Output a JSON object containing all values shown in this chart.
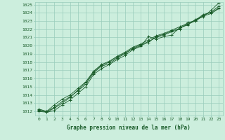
{
  "title": "Graphe pression niveau de la mer (hPa)",
  "ylabel_ticks": [
    1012,
    1013,
    1014,
    1015,
    1016,
    1017,
    1018,
    1019,
    1020,
    1021,
    1022,
    1023,
    1024,
    1025
  ],
  "ylim": [
    1011.5,
    1025.3
  ],
  "xlim": [
    -0.5,
    23.5
  ],
  "xticks": [
    0,
    1,
    2,
    3,
    4,
    5,
    6,
    7,
    8,
    9,
    10,
    11,
    12,
    13,
    14,
    15,
    16,
    17,
    18,
    19,
    20,
    21,
    22,
    23
  ],
  "background_color": "#cceedd",
  "grid_color": "#99ccbb",
  "line_color": "#1a5c2a",
  "marker": "+",
  "lines": [
    [
      1012.0,
      1011.9,
      1012.1,
      1012.8,
      1013.4,
      1014.2,
      1015.0,
      1016.5,
      1017.2,
      1017.7,
      1018.3,
      1018.8,
      1019.5,
      1019.9,
      1021.1,
      1020.8,
      1021.1,
      1021.3,
      1022.2,
      1022.5,
      1023.2,
      1023.5,
      1024.3,
      1025.2
    ],
    [
      1012.1,
      1012.0,
      1012.5,
      1013.2,
      1013.8,
      1014.5,
      1015.3,
      1016.7,
      1017.5,
      1017.8,
      1018.5,
      1019.0,
      1019.7,
      1020.1,
      1020.5,
      1021.0,
      1021.3,
      1021.7,
      1022.0,
      1022.8,
      1023.0,
      1023.7,
      1024.1,
      1024.8
    ],
    [
      1012.3,
      1012.0,
      1012.8,
      1013.5,
      1014.0,
      1014.8,
      1015.6,
      1016.9,
      1017.7,
      1018.1,
      1018.7,
      1019.2,
      1019.8,
      1020.2,
      1020.7,
      1021.2,
      1021.5,
      1021.9,
      1022.3,
      1022.7,
      1023.1,
      1023.8,
      1024.0,
      1024.6
    ],
    [
      1012.2,
      1011.9,
      1012.4,
      1013.0,
      1013.7,
      1014.6,
      1015.5,
      1016.8,
      1017.6,
      1018.0,
      1018.6,
      1019.1,
      1019.6,
      1020.0,
      1020.4,
      1021.1,
      1021.4,
      1021.8,
      1022.1,
      1022.6,
      1023.0,
      1023.6,
      1023.9,
      1024.5
    ]
  ]
}
